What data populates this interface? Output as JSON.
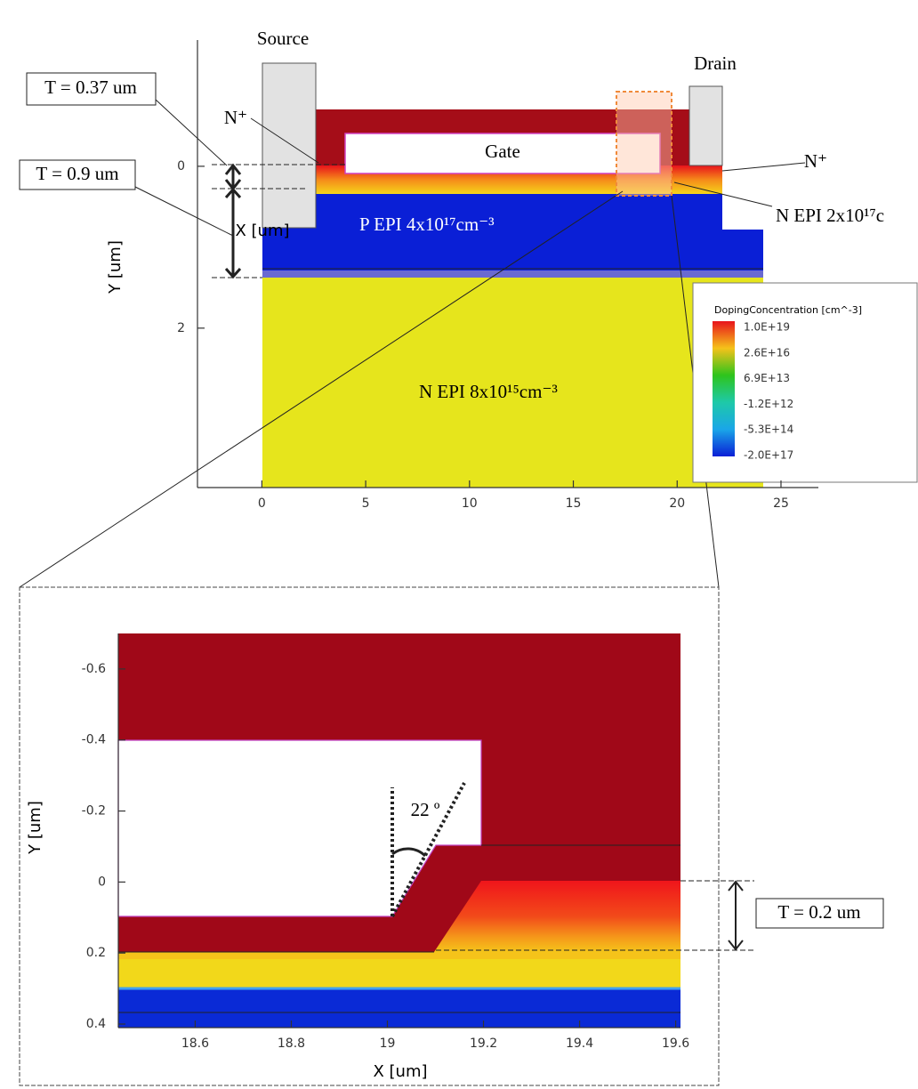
{
  "chart_data": [
    {
      "type": "heatmap",
      "x_label": "X [um]",
      "y_label": "Y [um]",
      "xlim": [
        -3.1,
        26.8
      ],
      "ylim": [
        -1.56,
        3.97
      ],
      "y_inverted": true,
      "xticks": [
        0,
        5,
        10,
        15,
        20,
        25
      ],
      "yticks": [
        0,
        2
      ],
      "grid": false,
      "annotations": [
        "Source",
        "Drain",
        "Gate",
        "N⁺",
        "N⁺",
        "T = 0.37 um",
        "T = 0.9 um",
        "P EPI  4x10¹⁷cm⁻³",
        "N EPI  2x10¹⁷c",
        "N EPI  8x10¹⁵cm⁻³"
      ],
      "legend": {
        "title": "DopingConcentration [cm^-3]",
        "items": [
          {
            "label": "1.0E+19",
            "color": "#e8131b"
          },
          {
            "label": "2.6E+16",
            "color": "#f5c21a"
          },
          {
            "label": "6.9E+13",
            "color": "#2ec41c"
          },
          {
            "label": "-1.2E+12",
            "color": "#1ec9a8"
          },
          {
            "label": "-5.3E+14",
            "color": "#1aa6e8"
          },
          {
            "label": "-2.0E+17",
            "color": "#0a1fd6"
          }
        ]
      }
    },
    {
      "type": "heatmap",
      "x_label": "X [um]",
      "y_label": "Y [um]",
      "xlim": [
        18.44,
        19.61
      ],
      "ylim": [
        -0.7,
        0.41
      ],
      "y_inverted": true,
      "xticks": [
        18.6,
        18.8,
        19,
        19.2,
        19.4,
        19.6
      ],
      "yticks": [
        -0.6,
        -0.4,
        -0.2,
        0,
        0.2,
        0.4
      ],
      "grid": false,
      "annotations": [
        "22 º",
        "T = 0.2 um"
      ]
    }
  ]
}
